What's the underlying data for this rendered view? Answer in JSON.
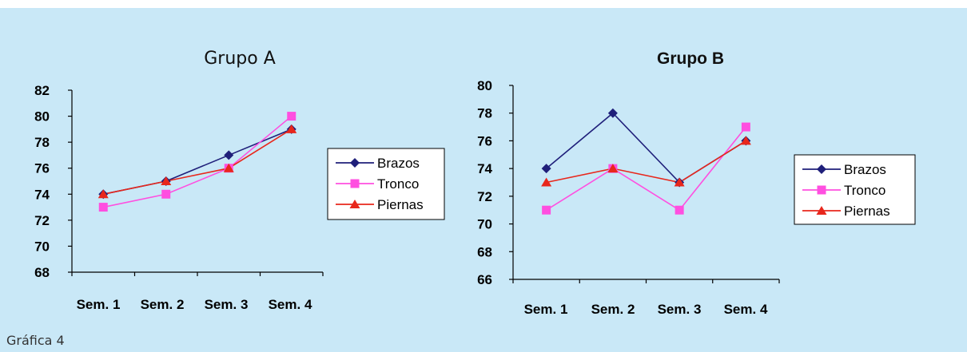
{
  "caption": "Gráfica 4",
  "chart_data": [
    {
      "type": "line",
      "title": "Grupo A",
      "categories": [
        "Sem. 1",
        "Sem. 2",
        "Sem. 3",
        "Sem. 4"
      ],
      "ylim": [
        68,
        82
      ],
      "yticks": [
        68,
        70,
        72,
        74,
        76,
        78,
        80,
        82
      ],
      "grid": false,
      "legend": "right",
      "series": [
        {
          "name": "Brazos",
          "values": [
            74,
            75,
            77,
            79
          ],
          "color": "#1f1f7a",
          "marker": "diamond"
        },
        {
          "name": "Tronco",
          "values": [
            73,
            74,
            76,
            80
          ],
          "color": "#ff4fe0",
          "marker": "square"
        },
        {
          "name": "Piernas",
          "values": [
            74,
            75,
            76,
            79
          ],
          "color": "#e8271c",
          "marker": "triangle"
        }
      ]
    },
    {
      "type": "line",
      "title": "Grupo B",
      "categories": [
        "Sem. 1",
        "Sem. 2",
        "Sem. 3",
        "Sem. 4"
      ],
      "ylim": [
        66,
        80
      ],
      "yticks": [
        66,
        68,
        70,
        72,
        74,
        76,
        78,
        80
      ],
      "grid": false,
      "legend": "right",
      "series": [
        {
          "name": "Brazos",
          "values": [
            74,
            78,
            73,
            76
          ],
          "color": "#1f1f7a",
          "marker": "diamond"
        },
        {
          "name": "Tronco",
          "values": [
            71,
            74,
            71,
            77
          ],
          "color": "#ff4fe0",
          "marker": "square"
        },
        {
          "name": "Piernas",
          "values": [
            73,
            74,
            73,
            76
          ],
          "color": "#e8271c",
          "marker": "triangle"
        }
      ]
    }
  ]
}
